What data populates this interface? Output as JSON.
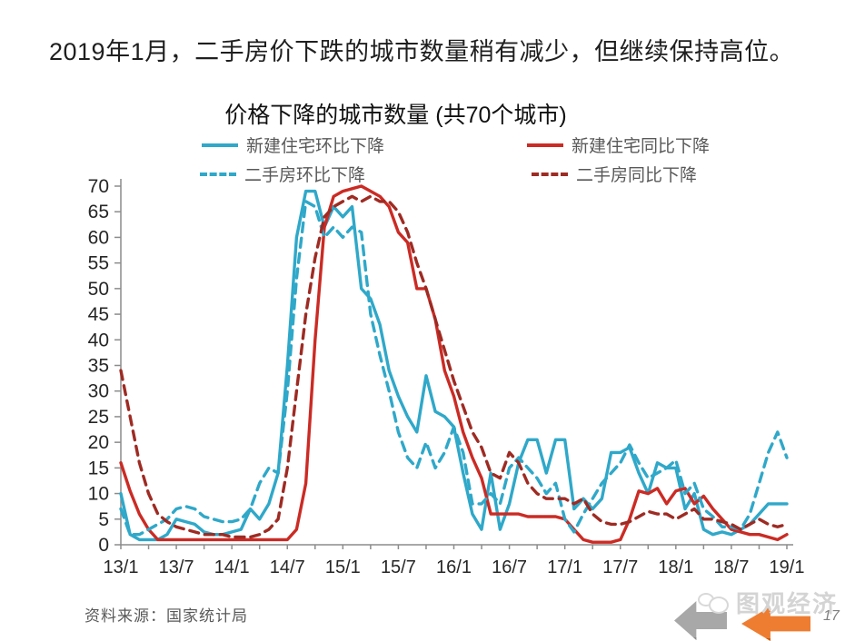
{
  "slide": {
    "title": "2019年1月，二手房价下跌的城市数量稍有减少，但继续保持高位。",
    "source": "资料来源：国家统计局",
    "watermark": "图观经济",
    "page_number": "17",
    "icons": {
      "gray_left_arrow": "left-block-arrow",
      "orange_left_arrow": "left-block-arrow",
      "watermark_logo": "speech-bubbles"
    }
  },
  "chart_data": {
    "type": "line",
    "title": "价格下降的城市数量 (共70个城市)",
    "xlabel": "",
    "ylabel": "",
    "ylim": [
      0,
      70
    ],
    "y_ticks": [
      0,
      5,
      10,
      15,
      20,
      25,
      30,
      35,
      40,
      45,
      50,
      55,
      60,
      65,
      70
    ],
    "x_tick_every": 6,
    "minor_tick_every": 3,
    "grid": false,
    "legend_position": "top",
    "axis_color": "#8c8c8c",
    "label_color": "#262626",
    "legend_text_color": "#595959",
    "x": [
      "13/1",
      "13/2",
      "13/3",
      "13/4",
      "13/5",
      "13/6",
      "13/7",
      "13/8",
      "13/9",
      "13/10",
      "13/11",
      "13/12",
      "14/1",
      "14/2",
      "14/3",
      "14/4",
      "14/5",
      "14/6",
      "14/7",
      "14/8",
      "14/9",
      "14/10",
      "14/11",
      "14/12",
      "15/1",
      "15/2",
      "15/3",
      "15/4",
      "15/5",
      "15/6",
      "15/7",
      "15/8",
      "15/9",
      "15/10",
      "15/11",
      "15/12",
      "16/1",
      "16/2",
      "16/3",
      "16/4",
      "16/5",
      "16/6",
      "16/7",
      "16/8",
      "16/9",
      "16/10",
      "16/11",
      "16/12",
      "17/1",
      "17/2",
      "17/3",
      "17/4",
      "17/5",
      "17/6",
      "17/7",
      "17/8",
      "17/9",
      "17/10",
      "17/11",
      "17/12",
      "18/1",
      "18/2",
      "18/3",
      "18/4",
      "18/5",
      "18/6",
      "18/7",
      "18/8",
      "18/9",
      "18/10",
      "18/11",
      "18/12",
      "19/1"
    ],
    "x_tick_labels": [
      "13/1",
      "13/7",
      "14/1",
      "14/7",
      "15/1",
      "15/7",
      "16/1",
      "16/7",
      "17/1",
      "17/7",
      "18/1",
      "18/7",
      "19/1"
    ],
    "series": [
      {
        "name": "新建住宅环比下降",
        "style": "solid",
        "color": "#2FA8C9",
        "values": [
          10,
          2,
          1,
          1,
          1,
          2,
          5,
          4.5,
          4,
          2.5,
          2,
          2,
          2.5,
          3,
          7,
          5,
          8,
          14,
          35,
          60,
          69,
          69,
          62,
          66,
          64,
          66,
          50,
          48,
          43,
          34,
          29,
          25,
          22,
          33,
          26,
          25,
          23,
          14,
          6,
          3,
          14,
          3,
          8,
          16,
          20.5,
          20.5,
          14,
          20.5,
          20.5,
          7,
          9,
          7,
          9,
          18,
          18,
          19,
          14,
          10,
          16,
          15,
          15,
          7,
          10,
          3,
          2,
          2.5,
          2,
          3,
          4,
          6,
          8,
          8,
          8
        ]
      },
      {
        "name": "新建住宅同比下降",
        "style": "solid",
        "color": "#CB2B24",
        "values": [
          16,
          10.5,
          6,
          3,
          1,
          1,
          1,
          1,
          1,
          1,
          1,
          1,
          1,
          1,
          1,
          1,
          1,
          1,
          1,
          3,
          12,
          40,
          62,
          68,
          69,
          69.5,
          70,
          69,
          68,
          66,
          61,
          59,
          50,
          50,
          44,
          34,
          29,
          22,
          17,
          13,
          6,
          6,
          6,
          6,
          5.5,
          5.5,
          5.5,
          5.5,
          5,
          3,
          1,
          0.5,
          0.5,
          0.5,
          1,
          5,
          10.5,
          10,
          11,
          8,
          10.5,
          11,
          8,
          9.5,
          7,
          5,
          3,
          2.5,
          2,
          2,
          1.5,
          1,
          2
        ]
      },
      {
        "name": "二手房环比下降",
        "style": "dashed",
        "color": "#2FA8C9",
        "values": [
          7,
          2,
          2,
          3,
          4,
          5,
          7,
          7.5,
          7,
          5.5,
          5,
          4.5,
          4.5,
          5,
          7,
          12,
          15,
          14,
          30,
          52,
          67,
          66,
          60,
          62,
          60,
          62,
          61,
          45,
          37,
          30,
          22,
          17,
          15,
          20,
          15,
          18,
          23,
          18,
          8,
          8,
          10,
          8,
          15,
          17,
          15,
          13,
          10,
          12,
          5,
          2.5,
          6,
          9,
          12,
          14,
          16,
          19.5,
          16,
          13,
          14,
          15,
          16.5,
          10,
          12,
          7,
          5.5,
          3.5,
          3.5,
          3,
          6,
          12,
          18,
          22,
          17
        ]
      },
      {
        "name": "二手房同比下降",
        "style": "dashed",
        "color": "#9E2B23",
        "values": [
          34,
          25,
          16,
          10,
          6,
          4.5,
          3.5,
          3,
          2.5,
          2,
          2,
          2,
          1.5,
          1.5,
          1.5,
          2,
          3,
          5,
          15,
          30,
          45,
          56,
          64,
          66,
          67,
          68,
          67,
          68,
          67,
          67,
          65,
          61,
          55,
          50,
          44,
          38,
          32,
          27,
          22,
          19,
          14,
          13,
          18,
          16,
          12,
          10,
          9,
          9,
          9,
          8,
          9,
          6,
          4.5,
          4,
          4,
          4.5,
          5.5,
          6.5,
          6,
          6,
          5,
          6,
          7,
          5,
          5,
          4.5,
          4,
          3,
          4,
          5,
          4,
          3.5,
          4
        ]
      }
    ]
  }
}
